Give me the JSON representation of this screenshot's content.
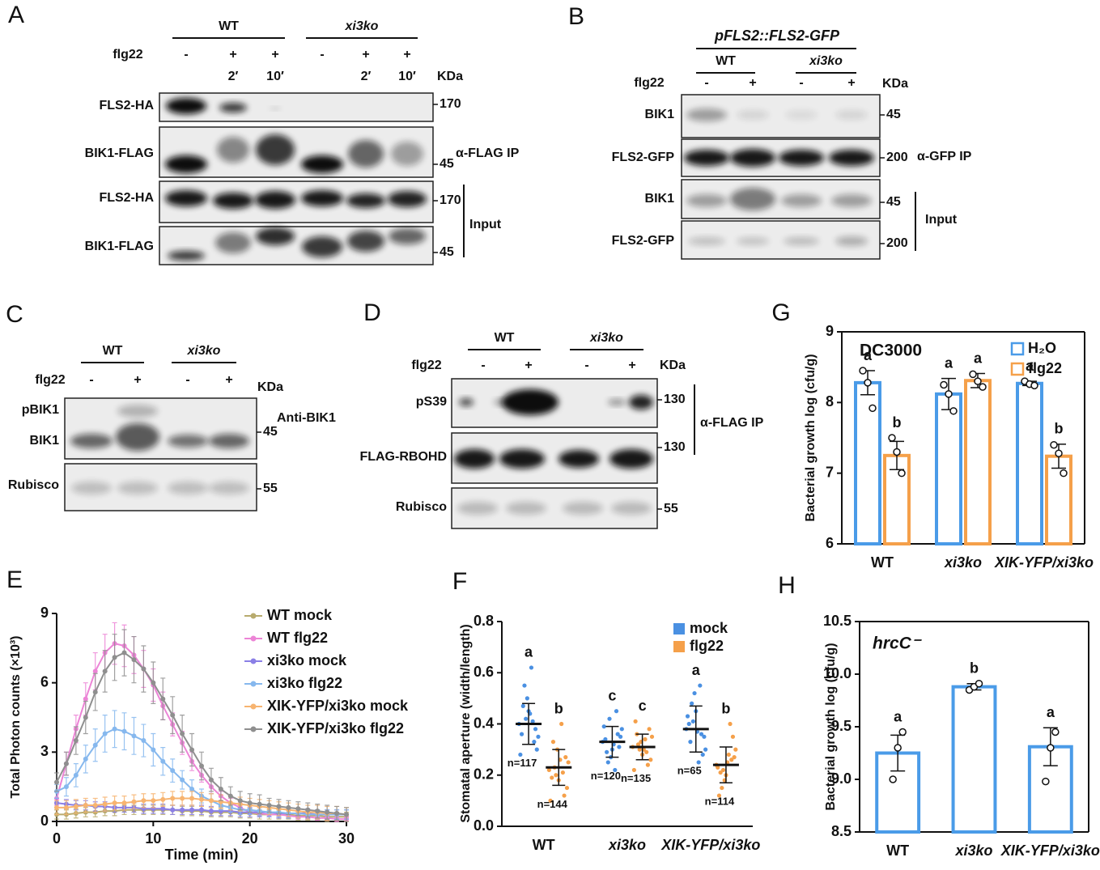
{
  "blots": [
    {
      "panel": "A",
      "groups": [
        "WT",
        "xi3ko"
      ],
      "treatment_label": "flg22",
      "treatments": [
        "-",
        "+",
        "+",
        "-",
        "+",
        "+"
      ],
      "times": [
        null,
        "2′",
        "10′",
        null,
        "2′",
        "10′"
      ],
      "unit": "KDa",
      "rows": [
        "FLS2-HA",
        "BIK1-FLAG",
        "FLS2-HA",
        "BIK1-FLAG"
      ],
      "markers": [
        170,
        45,
        170,
        45
      ],
      "brackets": [
        "α-FLAG IP",
        "Input"
      ]
    },
    {
      "panel": "B",
      "construct": "pFLS2::FLS2-GFP",
      "groups": [
        "WT",
        "xi3ko"
      ],
      "treatment_label": "flg22",
      "treatments": [
        "-",
        "+",
        "-",
        "+"
      ],
      "unit": "KDa",
      "rows": [
        "BIK1",
        "FLS2-GFP",
        "BIK1",
        "FLS2-GFP"
      ],
      "markers": [
        45,
        200,
        45,
        200
      ],
      "brackets": [
        "α-GFP IP",
        "Input"
      ]
    },
    {
      "panel": "C",
      "groups": [
        "WT",
        "xi3ko"
      ],
      "treatment_label": "flg22",
      "treatments": [
        "-",
        "+",
        "-",
        "+"
      ],
      "unit": "KDa",
      "rows": [
        "pBIK1",
        "BIK1",
        "Rubisco"
      ],
      "markers": [
        45,
        55
      ],
      "brackets": [
        "Anti-BIK1"
      ]
    },
    {
      "panel": "D",
      "groups": [
        "WT",
        "xi3ko"
      ],
      "treatment_label": "flg22",
      "treatments": [
        "-",
        "+",
        "-",
        "+"
      ],
      "unit": "KDa",
      "rows": [
        "pS39",
        "FLAG-RBOHD",
        "Rubisco"
      ],
      "markers": [
        130,
        130,
        55
      ],
      "brackets": [
        "α-FLAG IP"
      ]
    }
  ],
  "chart_data": [
    {
      "type": "line",
      "panel": "E",
      "xlabel": "Time (min)",
      "ylabel": "Total Photon counts (×10³)",
      "x": [
        0,
        1,
        2,
        3,
        4,
        5,
        6,
        7,
        8,
        9,
        10,
        11,
        12,
        13,
        14,
        15,
        16,
        17,
        18,
        19,
        20,
        21,
        22,
        23,
        24,
        25,
        26,
        27,
        28,
        29,
        30
      ],
      "xlim": [
        0,
        30
      ],
      "xticks": [
        0,
        10,
        20,
        30
      ],
      "ylim": [
        0,
        9
      ],
      "yticks": [
        0,
        3,
        6,
        9
      ],
      "series": [
        {
          "name": "WT mock",
          "color": "#b8ab6e",
          "values": [
            0.3,
            0.3,
            0.35,
            0.4,
            0.4,
            0.45,
            0.45,
            0.5,
            0.5,
            0.5,
            0.5,
            0.5,
            0.5,
            0.45,
            0.45,
            0.45,
            0.4,
            0.4,
            0.4,
            0.35,
            0.35,
            0.3,
            0.3,
            0.3,
            0.3,
            0.25,
            0.25,
            0.25,
            0.2,
            0.2,
            0.2
          ],
          "errors": [
            0.2,
            0.2,
            0.2,
            0.2,
            0.2,
            0.2,
            0.2,
            0.2,
            0.2,
            0.2,
            0.2,
            0.2,
            0.2,
            0.2,
            0.2,
            0.2,
            0.2,
            0.2,
            0.2,
            0.2,
            0.2,
            0.2,
            0.2,
            0.2,
            0.2,
            0.2,
            0.2,
            0.2,
            0.2,
            0.2,
            0.2
          ]
        },
        {
          "name": "WT flg22",
          "color": "#ec84d6",
          "values": [
            1.0,
            2.5,
            4.0,
            5.3,
            6.5,
            7.3,
            7.7,
            7.6,
            7.2,
            6.6,
            5.9,
            5.0,
            4.2,
            3.4,
            2.6,
            2.0,
            1.5,
            1.1,
            0.8,
            0.6,
            0.4,
            0.35,
            0.3,
            0.3,
            0.25,
            0.2,
            0.2,
            0.15,
            0.15,
            0.1,
            0.1
          ],
          "errors": [
            0.3,
            0.5,
            0.6,
            0.7,
            0.8,
            0.8,
            0.9,
            0.9,
            0.8,
            0.8,
            0.7,
            0.6,
            0.5,
            0.5,
            0.4,
            0.3,
            0.3,
            0.2,
            0.2,
            0.2,
            0.1,
            0.1,
            0.1,
            0.1,
            0.1,
            0.1,
            0.1,
            0.1,
            0.1,
            0.1,
            0.1
          ]
        },
        {
          "name": "xi3ko mock",
          "color": "#8a7fe6",
          "values": [
            0.8,
            0.75,
            0.7,
            0.7,
            0.65,
            0.65,
            0.6,
            0.6,
            0.6,
            0.55,
            0.55,
            0.55,
            0.5,
            0.5,
            0.5,
            0.5,
            0.45,
            0.45,
            0.45,
            0.4,
            0.4,
            0.4,
            0.4,
            0.35,
            0.35,
            0.35,
            0.35,
            0.3,
            0.3,
            0.3,
            0.3
          ],
          "errors": [
            0.2,
            0.2,
            0.2,
            0.2,
            0.2,
            0.2,
            0.2,
            0.2,
            0.2,
            0.2,
            0.2,
            0.2,
            0.2,
            0.2,
            0.2,
            0.2,
            0.2,
            0.2,
            0.2,
            0.2,
            0.2,
            0.2,
            0.2,
            0.2,
            0.2,
            0.2,
            0.2,
            0.2,
            0.2,
            0.2,
            0.2
          ]
        },
        {
          "name": "xi3ko flg22",
          "color": "#86b8ee",
          "values": [
            1.3,
            1.5,
            2.0,
            2.7,
            3.3,
            3.8,
            4.0,
            3.9,
            3.7,
            3.5,
            3.1,
            2.6,
            2.2,
            1.8,
            1.4,
            1.1,
            0.9,
            0.7,
            0.6,
            0.5,
            0.5,
            0.45,
            0.4,
            0.4,
            0.35,
            0.35,
            0.3,
            0.3,
            0.3,
            0.3,
            0.3
          ],
          "errors": [
            0.3,
            0.4,
            0.5,
            0.6,
            0.7,
            0.8,
            0.8,
            0.8,
            0.8,
            0.7,
            0.7,
            0.6,
            0.5,
            0.4,
            0.4,
            0.3,
            0.3,
            0.2,
            0.2,
            0.2,
            0.2,
            0.2,
            0.2,
            0.2,
            0.2,
            0.2,
            0.2,
            0.2,
            0.2,
            0.2,
            0.2
          ]
        },
        {
          "name": "XIK-YFP/xi3ko mock",
          "color": "#f7b470",
          "values": [
            0.6,
            0.6,
            0.65,
            0.7,
            0.7,
            0.75,
            0.8,
            0.8,
            0.85,
            0.9,
            0.9,
            0.95,
            1.0,
            1.0,
            1.0,
            0.95,
            0.9,
            0.85,
            0.8,
            0.75,
            0.7,
            0.65,
            0.6,
            0.55,
            0.5,
            0.45,
            0.4,
            0.4,
            0.35,
            0.35,
            0.3
          ],
          "errors": [
            0.3,
            0.3,
            0.3,
            0.3,
            0.3,
            0.3,
            0.3,
            0.3,
            0.3,
            0.3,
            0.3,
            0.3,
            0.3,
            0.3,
            0.3,
            0.3,
            0.3,
            0.3,
            0.3,
            0.3,
            0.3,
            0.3,
            0.3,
            0.3,
            0.3,
            0.3,
            0.3,
            0.3,
            0.3,
            0.3,
            0.3
          ]
        },
        {
          "name": "XIK-YFP/xi3ko flg22",
          "color": "#8f8f8f",
          "values": [
            1.7,
            2.5,
            3.5,
            4.5,
            5.6,
            6.5,
            7.1,
            7.3,
            7.0,
            6.6,
            6.0,
            5.3,
            4.6,
            3.8,
            3.1,
            2.4,
            1.8,
            1.4,
            1.1,
            0.9,
            0.8,
            0.75,
            0.7,
            0.65,
            0.6,
            0.55,
            0.5,
            0.45,
            0.4,
            0.35,
            0.3
          ],
          "errors": [
            0.4,
            0.5,
            0.6,
            0.7,
            0.8,
            0.9,
            1.0,
            1.0,
            1.0,
            1.0,
            0.9,
            0.9,
            0.8,
            0.8,
            0.7,
            0.6,
            0.5,
            0.5,
            0.4,
            0.4,
            0.4,
            0.4,
            0.3,
            0.3,
            0.3,
            0.3,
            0.3,
            0.3,
            0.3,
            0.3,
            0.3
          ]
        }
      ]
    },
    {
      "type": "strip",
      "panel": "F",
      "ylabel": "Stomatal aperture (width/length)",
      "categories": [
        "WT",
        "xi3ko",
        "XIK-YFP/xi3ko"
      ],
      "ylim": [
        0,
        0.8
      ],
      "yticks": [
        {
          "value": 0,
          "label": "0.0"
        },
        0.2,
        0.4,
        0.6,
        0.8
      ],
      "series": [
        {
          "name": "mock",
          "color": "#4a90e2",
          "values": [
            0.4,
            0.33,
            0.38
          ],
          "errors": [
            0.08,
            0.06,
            0.09
          ],
          "points": [
            [
              0.4,
              0.45,
              0.35,
              0.5,
              0.3,
              0.42,
              0.38,
              0.55,
              0.33,
              0.47,
              0.41,
              0.36,
              0.62,
              0.28,
              0.44
            ],
            [
              0.33,
              0.3,
              0.38,
              0.27,
              0.35,
              0.42,
              0.31,
              0.25,
              0.36,
              0.29,
              0.45,
              0.34,
              0.22,
              0.39,
              0.32
            ],
            [
              0.38,
              0.45,
              0.3,
              0.52,
              0.35,
              0.41,
              0.28,
              0.48,
              0.36,
              0.33,
              0.55,
              0.4,
              0.25,
              0.43,
              0.37
            ]
          ],
          "letters": [
            "a",
            "c",
            "a"
          ],
          "n_labels": [
            "n=117",
            "n=120",
            "n=65"
          ]
        },
        {
          "name": "flg22",
          "color": "#f5a04a",
          "values": [
            0.23,
            0.31,
            0.24
          ],
          "errors": [
            0.07,
            0.05,
            0.07
          ],
          "points": [
            [
              0.22,
              0.18,
              0.25,
              0.3,
              0.15,
              0.2,
              0.27,
              0.23,
              0.12,
              0.33,
              0.21,
              0.19,
              0.4,
              0.1,
              0.26
            ],
            [
              0.31,
              0.28,
              0.35,
              0.33,
              0.26,
              0.3,
              0.38,
              0.32,
              0.24,
              0.36,
              0.29,
              0.41,
              0.34,
              0.22,
              0.3
            ],
            [
              0.24,
              0.2,
              0.3,
              0.18,
              0.27,
              0.22,
              0.35,
              0.15,
              0.26,
              0.21,
              0.4,
              0.12,
              0.28,
              0.23,
              0.25
            ]
          ],
          "letters": [
            "b",
            "c",
            "b"
          ],
          "n_labels": [
            "n=144",
            "n=135",
            "n=114"
          ]
        }
      ]
    },
    {
      "type": "bar",
      "panel": "G",
      "annotation": "DC3000",
      "ylabel": "Bacterial growth log (cfu/g)",
      "categories": [
        "WT",
        "xi3ko",
        "XIK-YFP/xi3ko"
      ],
      "ylim": [
        6,
        9
      ],
      "yticks": [
        6,
        7,
        8,
        9
      ],
      "series": [
        {
          "name": "H₂O",
          "color": "#4a9be8",
          "values": [
            8.28,
            8.12,
            8.27
          ],
          "errors": [
            0.17,
            0.22,
            0.03
          ],
          "points": [
            [
              8.45,
              8.28,
              7.92
            ],
            [
              8.25,
              8.12,
              7.88
            ],
            [
              8.3,
              8.26,
              8.24
            ]
          ],
          "letters": [
            "a",
            "a",
            "a"
          ]
        },
        {
          "name": "flg22",
          "color": "#f5a04a",
          "values": [
            7.25,
            8.31,
            7.24
          ],
          "errors": [
            0.2,
            0.1,
            0.17
          ],
          "points": [
            [
              7.5,
              7.3,
              7.0
            ],
            [
              8.4,
              8.3,
              8.22
            ],
            [
              7.4,
              7.28,
              7.0
            ]
          ],
          "letters": [
            "b",
            "a",
            "b"
          ]
        }
      ]
    },
    {
      "type": "bar",
      "panel": "H",
      "annotation": "hrcC⁻",
      "ylabel": "Bacterial growth log (cfu/g)",
      "categories": [
        "WT",
        "xi3ko",
        "XIK-YFP/xi3ko"
      ],
      "ylim": [
        8.5,
        10.5
      ],
      "yticks": [
        8.5,
        {
          "value": 9,
          "label": "9.0"
        },
        9.5,
        {
          "value": 10,
          "label": "10.0"
        },
        10.5
      ],
      "series": [
        {
          "color": "#4a9be8",
          "values": [
            9.25,
            9.88,
            9.31
          ],
          "errors": [
            0.17,
            0.03,
            0.18
          ],
          "points": [
            [
              9.0,
              9.3,
              9.45
            ],
            [
              9.85,
              9.88,
              9.91
            ],
            [
              8.98,
              9.3,
              9.45
            ]
          ],
          "letters": [
            "a",
            "b",
            "a"
          ]
        }
      ]
    }
  ]
}
